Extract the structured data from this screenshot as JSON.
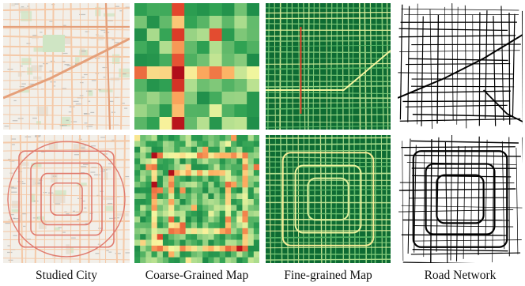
{
  "captions": {
    "studied_city": "Studied City",
    "coarse_map": "Coarse-Grained Map",
    "fine_map": "Fine-grained Map",
    "road_network": "Road Network"
  },
  "palette": {
    "map_background": "#f2efe9",
    "map_roads": "#e59a8f",
    "map_green": "#cfe5c4",
    "heat_low": "#006837",
    "heat_mid": "#f7f7a0",
    "heat_high": "#c51b1b",
    "road_lines": "#000000"
  }
}
